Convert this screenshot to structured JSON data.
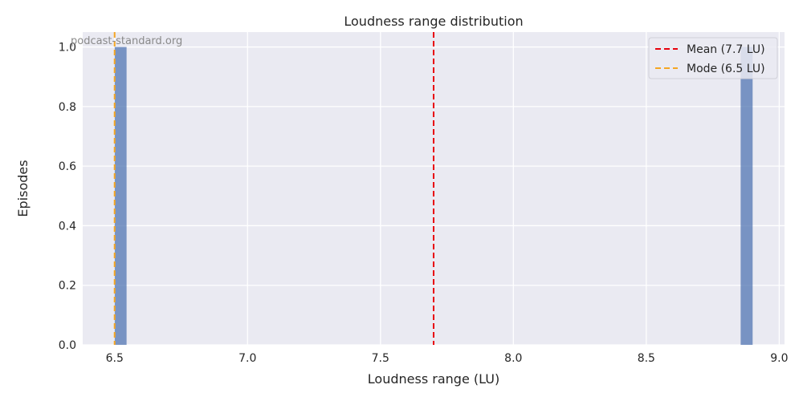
{
  "chart_data": {
    "type": "histogram",
    "title": "Loudness range distribution",
    "xlabel": "Loudness range (LU)",
    "ylabel": "Episodes",
    "xlim": [
      6.38,
      9.02
    ],
    "ylim": [
      0,
      1.05
    ],
    "xticks": [
      6.5,
      7.0,
      7.5,
      8.0,
      8.5,
      9.0
    ],
    "xtick_labels": [
      "6.5",
      "7.0",
      "7.5",
      "8.0",
      "8.5",
      "9.0"
    ],
    "yticks": [
      0,
      0.2,
      0.4,
      0.6,
      0.8,
      1.0
    ],
    "ytick_labels": [
      "0.0",
      "0.2",
      "0.4",
      "0.6",
      "0.8",
      "1.0"
    ],
    "bars": [
      {
        "x0": 6.5,
        "x1": 6.545,
        "count": 1
      },
      {
        "x0": 8.855,
        "x1": 8.9,
        "count": 1
      }
    ],
    "reference_lines": [
      {
        "label": "Mean (7.7 LU)",
        "x": 7.7,
        "color": "#e8000b"
      },
      {
        "label": "Mode (6.5 LU)",
        "x": 6.5,
        "color": "#f5a623"
      }
    ],
    "bar_color": "#4c72b0",
    "grid": true,
    "legend_position": "top-right",
    "watermark": "podcast-standard.org"
  }
}
